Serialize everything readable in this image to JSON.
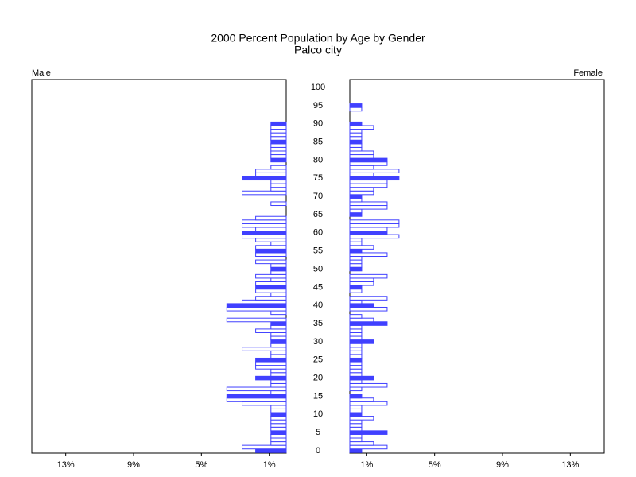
{
  "chart_data": {
    "type": "pyramid",
    "title": "2000 Percent Population by Age by Gender",
    "subtitle": "Palco city",
    "categories": [
      0,
      null,
      null,
      null,
      null,
      5,
      null,
      null,
      null,
      null,
      10,
      null,
      null,
      null,
      null,
      15,
      null,
      null,
      null,
      null,
      20,
      null,
      null,
      null,
      null,
      25,
      null,
      null,
      null,
      null,
      30,
      null,
      null,
      null,
      null,
      35,
      null,
      null,
      null,
      null,
      40,
      null,
      null,
      null,
      null,
      45,
      null,
      null,
      null,
      null,
      50,
      null,
      null,
      null,
      null,
      55,
      null,
      null,
      null,
      null,
      60,
      null,
      null,
      null,
      null,
      65,
      null,
      null,
      null,
      null,
      70,
      null,
      null,
      null,
      null,
      75,
      null,
      null,
      null,
      null,
      80,
      null,
      null,
      null,
      null,
      85,
      null,
      null,
      null,
      null,
      90,
      null,
      null,
      null,
      null,
      95,
      null,
      null,
      null,
      null,
      100
    ],
    "xlim": [
      0,
      15
    ],
    "xticks": [
      {
        "value": 1,
        "label": "1%"
      },
      {
        "value": 5,
        "label": "5%"
      },
      {
        "value": 9,
        "label": "9%"
      },
      {
        "value": 13,
        "label": "13%"
      }
    ],
    "fill_every": 5,
    "series": [
      {
        "name": "Male",
        "color": "#4040ff",
        "values": [
          1.8,
          2.6,
          0.9,
          0.9,
          0.9,
          0.9,
          0.9,
          0.9,
          0.9,
          0.9,
          0.9,
          0.9,
          0.9,
          2.6,
          3.5,
          3.5,
          0.9,
          3.5,
          0.9,
          0.9,
          1.8,
          0.9,
          0.9,
          1.8,
          1.8,
          1.8,
          0.9,
          0.9,
          2.6,
          0.9,
          0.9,
          0.9,
          0.9,
          1.8,
          0.9,
          0.9,
          3.5,
          0,
          0.9,
          3.5,
          3.5,
          2.6,
          1.8,
          0.9,
          1.8,
          1.8,
          1.8,
          0.9,
          1.8,
          0.9,
          0.9,
          0.9,
          1.8,
          0,
          1.8,
          1.8,
          1.8,
          0.9,
          1.8,
          2.6,
          2.6,
          1.8,
          2.6,
          2.6,
          1.8,
          0,
          0,
          0,
          0.9,
          0,
          0,
          2.6,
          0.9,
          0.9,
          0.9,
          2.6,
          1.8,
          1.8,
          0.9,
          0,
          0.9,
          0.9,
          0.9,
          0.9,
          0.9,
          0.9,
          0.9,
          0.9,
          0.9,
          0.9,
          0.9,
          0,
          0,
          0,
          0,
          0,
          0,
          0,
          0,
          0,
          0
        ]
      },
      {
        "name": "Female",
        "color": "#4040ff",
        "values": [
          0.7,
          2.2,
          1.4,
          0.7,
          0.7,
          2.2,
          0.7,
          0.7,
          0.7,
          1.4,
          0.7,
          0.7,
          0.7,
          2.2,
          1.4,
          0.7,
          0,
          0.7,
          2.2,
          0.7,
          1.4,
          0.7,
          0.7,
          0.7,
          0.7,
          0.7,
          0.7,
          0.7,
          0.7,
          0.7,
          1.4,
          0.7,
          0.7,
          0.7,
          0.7,
          2.2,
          1.4,
          0.7,
          0,
          2.2,
          1.4,
          0.7,
          2.2,
          0,
          0.7,
          0.7,
          1.4,
          1.4,
          2.2,
          0,
          0.7,
          0.7,
          0.7,
          0.7,
          2.2,
          0.7,
          1.4,
          0.7,
          0.7,
          2.9,
          2.2,
          2.2,
          2.9,
          2.9,
          0,
          0.7,
          0.7,
          2.2,
          2.2,
          0.7,
          0.7,
          1.4,
          1.4,
          2.2,
          2.2,
          2.9,
          1.4,
          2.9,
          1.4,
          2.2,
          2.2,
          1.4,
          1.4,
          0.7,
          0.7,
          0.7,
          0.7,
          0.7,
          0.7,
          1.4,
          0.7,
          0,
          0,
          0,
          0.7,
          0.7,
          0,
          0,
          0,
          0,
          0
        ]
      }
    ]
  }
}
